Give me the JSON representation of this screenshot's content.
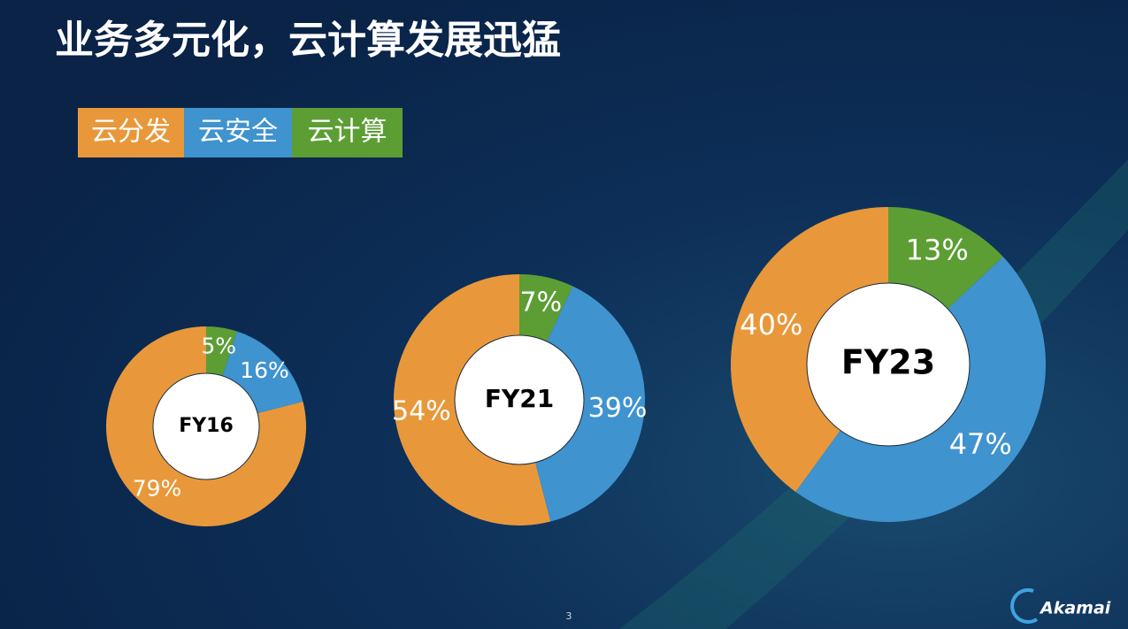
{
  "title": "业务多元化，云计算发展迅猛",
  "legend": [
    {
      "name": "云分发",
      "color": "#e8983a"
    },
    {
      "name": "云安全",
      "color": "#3f93cf"
    },
    {
      "name": "云计算",
      "color": "#5c9e34"
    }
  ],
  "chart_data": [
    {
      "type": "donut",
      "center_label": "FY16",
      "values": [
        79,
        16,
        5
      ],
      "value_labels": [
        "79%",
        "16%",
        "5%"
      ]
    },
    {
      "type": "donut",
      "center_label": "FY21",
      "values": [
        54,
        39,
        7
      ],
      "value_labels": [
        "54%",
        "39%",
        "7%"
      ]
    },
    {
      "type": "donut",
      "center_label": "FY23",
      "values": [
        40,
        47,
        13
      ],
      "value_labels": [
        "40%",
        "47%",
        "13%"
      ]
    }
  ],
  "page_number": "3",
  "logo": "Akamai"
}
